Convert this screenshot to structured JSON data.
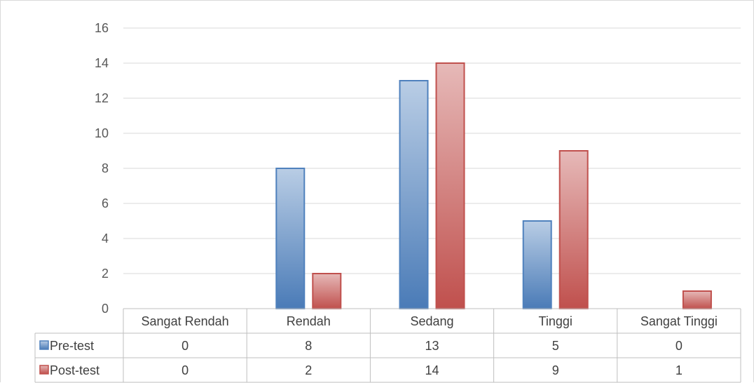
{
  "chart_data": {
    "type": "bar",
    "categories": [
      "Sangat Rendah",
      "Rendah",
      "Sedang",
      "Tinggi",
      "Sangat Tinggi"
    ],
    "series": [
      {
        "name": "Pre-test",
        "values": [
          0,
          8,
          13,
          5,
          0
        ],
        "color": "#4f81bd"
      },
      {
        "name": "Post-test",
        "values": [
          0,
          2,
          14,
          9,
          1
        ],
        "color": "#c0504d"
      }
    ],
    "yticks": [
      0,
      2,
      4,
      6,
      8,
      10,
      12,
      14,
      16
    ],
    "ylim": [
      0,
      16
    ],
    "grid": true,
    "legend": "data-table",
    "title": "",
    "xlabel": "",
    "ylabel": ""
  }
}
